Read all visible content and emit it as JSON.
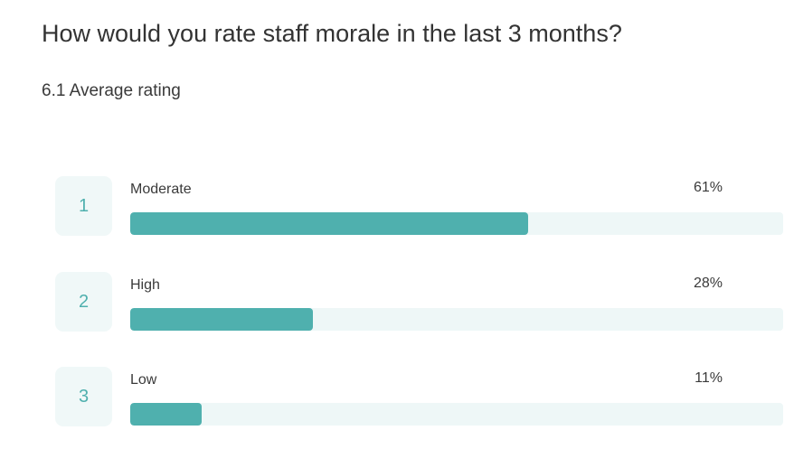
{
  "question": {
    "title": "How would you rate staff morale in the last 3 months?",
    "average": "6.1 Average rating"
  },
  "colors": {
    "accent": "#4fb0ae",
    "track": "#eef7f7",
    "rank_box": "#f0f8f8"
  },
  "chart_data": {
    "type": "bar",
    "orientation": "horizontal",
    "categories": [
      "Moderate",
      "High",
      "Low"
    ],
    "values": [
      61,
      28,
      11
    ],
    "value_labels": [
      "61%",
      "28%",
      "11%"
    ],
    "ranks": [
      "1",
      "2",
      "3"
    ],
    "xlim": [
      0,
      100
    ],
    "grid": false
  }
}
